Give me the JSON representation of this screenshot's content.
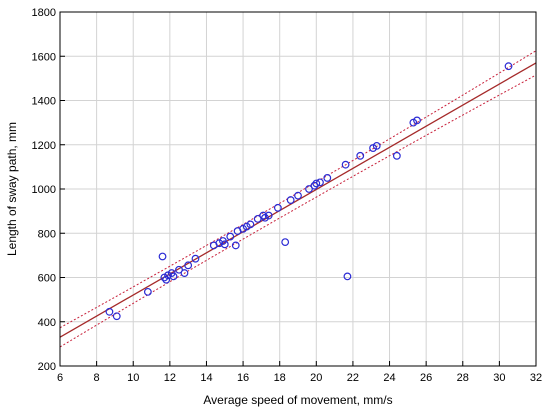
{
  "chart_data": {
    "type": "scatter",
    "xlabel": "Average speed of movement, mm/s",
    "ylabel": "Length of sway path, mm",
    "xlim": [
      6,
      32
    ],
    "ylim": [
      200,
      1800
    ],
    "xticks": [
      6,
      8,
      10,
      12,
      14,
      16,
      18,
      20,
      22,
      24,
      26,
      28,
      30,
      32
    ],
    "yticks": [
      200,
      400,
      600,
      800,
      1000,
      1200,
      1400,
      1600,
      1800
    ],
    "grid": true,
    "points": [
      {
        "x": 8.7,
        "y": 445
      },
      {
        "x": 9.1,
        "y": 425
      },
      {
        "x": 10.8,
        "y": 535
      },
      {
        "x": 11.6,
        "y": 695
      },
      {
        "x": 11.7,
        "y": 600
      },
      {
        "x": 11.8,
        "y": 590
      },
      {
        "x": 11.9,
        "y": 610
      },
      {
        "x": 12.1,
        "y": 620
      },
      {
        "x": 12.2,
        "y": 605
      },
      {
        "x": 12.5,
        "y": 635
      },
      {
        "x": 12.8,
        "y": 620
      },
      {
        "x": 13.0,
        "y": 655
      },
      {
        "x": 13.4,
        "y": 685
      },
      {
        "x": 14.4,
        "y": 745
      },
      {
        "x": 14.7,
        "y": 755
      },
      {
        "x": 14.9,
        "y": 765
      },
      {
        "x": 15.0,
        "y": 750
      },
      {
        "x": 15.3,
        "y": 785
      },
      {
        "x": 15.6,
        "y": 745
      },
      {
        "x": 15.7,
        "y": 810
      },
      {
        "x": 16.0,
        "y": 820
      },
      {
        "x": 16.2,
        "y": 830
      },
      {
        "x": 16.4,
        "y": 840
      },
      {
        "x": 16.8,
        "y": 865
      },
      {
        "x": 17.1,
        "y": 880
      },
      {
        "x": 17.2,
        "y": 870
      },
      {
        "x": 17.4,
        "y": 880
      },
      {
        "x": 17.9,
        "y": 915
      },
      {
        "x": 18.3,
        "y": 760
      },
      {
        "x": 18.6,
        "y": 950
      },
      {
        "x": 19.0,
        "y": 970
      },
      {
        "x": 19.6,
        "y": 1000
      },
      {
        "x": 19.9,
        "y": 1015
      },
      {
        "x": 20.0,
        "y": 1025
      },
      {
        "x": 20.2,
        "y": 1030
      },
      {
        "x": 20.6,
        "y": 1050
      },
      {
        "x": 21.6,
        "y": 1110
      },
      {
        "x": 21.7,
        "y": 605
      },
      {
        "x": 22.4,
        "y": 1150
      },
      {
        "x": 23.1,
        "y": 1185
      },
      {
        "x": 23.3,
        "y": 1195
      },
      {
        "x": 24.4,
        "y": 1150
      },
      {
        "x": 25.3,
        "y": 1300
      },
      {
        "x": 25.5,
        "y": 1310
      },
      {
        "x": 30.5,
        "y": 1555
      }
    ],
    "fit_line": {
      "x": [
        6,
        32
      ],
      "y": [
        330,
        1570
      ]
    },
    "confidence_upper": {
      "x": [
        6,
        19,
        32
      ],
      "y": [
        373,
        968,
        1625
      ]
    },
    "confidence_lower": {
      "x": [
        6,
        19,
        32
      ],
      "y": [
        286,
        932,
        1515
      ]
    },
    "colors": {
      "points": "#2b2bd4",
      "fit_line": "#a52a2a",
      "confidence": "#c8203a",
      "grid": "#d3d3d3",
      "axes": "#000000"
    }
  }
}
